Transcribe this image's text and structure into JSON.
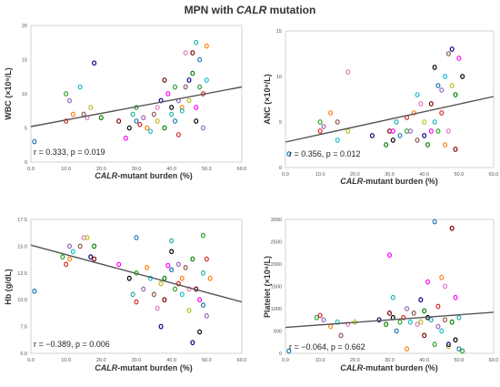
{
  "title": {
    "prefix": "MPN with ",
    "italic": "CALR",
    "suffix": " mutation"
  },
  "colors": {
    "frame": "#c8c8c8",
    "regression": "#555555",
    "points": [
      "#1f77b4",
      "#2ca02c",
      "#d62728",
      "#9467bd",
      "#ff7f0e",
      "#17becf",
      "#8c564b",
      "#e377c2",
      "#bcbd22",
      "#000080",
      "#008000",
      "#800000",
      "#ff00ff",
      "#000000",
      "#20b2aa"
    ]
  },
  "chart_data": [
    {
      "type": "scatter",
      "xlabel_italic": "CALR",
      "xlabel_rest": "-mutant burden (%)",
      "ylabel_html": "WBC (×10⁹/L)",
      "xlim": [
        0,
        60
      ],
      "ylim": [
        0,
        20
      ],
      "xticks": [
        "0.0",
        "10.0",
        "20.0",
        "30.0",
        "40.0",
        "50.0",
        "60.0"
      ],
      "yticks": [
        "0",
        "5",
        "10",
        "15",
        "20"
      ],
      "stat_text": "r  = 0.333, p  = 0.019",
      "regression": {
        "x": [
          0,
          60
        ],
        "y": [
          5.2,
          11.0
        ]
      },
      "points": [
        [
          1,
          3
        ],
        [
          10,
          10
        ],
        [
          10,
          6
        ],
        [
          11,
          9
        ],
        [
          12,
          7
        ],
        [
          14,
          11
        ],
        [
          15,
          7
        ],
        [
          16,
          6.5
        ],
        [
          17,
          8
        ],
        [
          18,
          14.5
        ],
        [
          20,
          6.5
        ],
        [
          25,
          6
        ],
        [
          27,
          3.5
        ],
        [
          28,
          5
        ],
        [
          29,
          7
        ],
        [
          30,
          6
        ],
        [
          30,
          8
        ],
        [
          31,
          5.5
        ],
        [
          32,
          6.5
        ],
        [
          33,
          5
        ],
        [
          34,
          4.5
        ],
        [
          35,
          7
        ],
        [
          36,
          8
        ],
        [
          36,
          6
        ],
        [
          37,
          9
        ],
        [
          38,
          5
        ],
        [
          38,
          12
        ],
        [
          39,
          10
        ],
        [
          40,
          8
        ],
        [
          40,
          7
        ],
        [
          41,
          6
        ],
        [
          41,
          11
        ],
        [
          42,
          4
        ],
        [
          42,
          9
        ],
        [
          43,
          8
        ],
        [
          43,
          7.5
        ],
        [
          44,
          11
        ],
        [
          44,
          16
        ],
        [
          45,
          9
        ],
        [
          45,
          12
        ],
        [
          46,
          13
        ],
        [
          46,
          16
        ],
        [
          47,
          8
        ],
        [
          47,
          6
        ],
        [
          47,
          17.5
        ],
        [
          48,
          15
        ],
        [
          48,
          11
        ],
        [
          49,
          10
        ],
        [
          49,
          5
        ],
        [
          50,
          17
        ],
        [
          50,
          12
        ]
      ]
    },
    {
      "type": "scatter",
      "xlabel_italic": "CALR",
      "xlabel_rest": "-mutant burden (%)",
      "ylabel_html": "ANC (×10⁹/L)",
      "xlim": [
        0,
        60
      ],
      "ylim": [
        0,
        15
      ],
      "xticks": [
        "0.0",
        "10.0",
        "20.0",
        "30.0",
        "40.0",
        "50.0",
        "60.0"
      ],
      "yticks": [
        "0",
        "5",
        "10",
        "15"
      ],
      "stat_text": "r  = 0.356, p  = 0.012",
      "regression": {
        "x": [
          0,
          60
        ],
        "y": [
          2.8,
          7.8
        ]
      },
      "points": [
        [
          1,
          1.5
        ],
        [
          10,
          5
        ],
        [
          10,
          4
        ],
        [
          11,
          4.5
        ],
        [
          13,
          6
        ],
        [
          15,
          3
        ],
        [
          15,
          5
        ],
        [
          18,
          10.5
        ],
        [
          18,
          4
        ],
        [
          25,
          3.5
        ],
        [
          29,
          2.5
        ],
        [
          30,
          4
        ],
        [
          31,
          4
        ],
        [
          31,
          3
        ],
        [
          32,
          5
        ],
        [
          33,
          3.5
        ],
        [
          35,
          4
        ],
        [
          35,
          5.5
        ],
        [
          36,
          4
        ],
        [
          37,
          6
        ],
        [
          38,
          8
        ],
        [
          38,
          3
        ],
        [
          39,
          7
        ],
        [
          40,
          5
        ],
        [
          40,
          3.5
        ],
        [
          41,
          2.5
        ],
        [
          42,
          7
        ],
        [
          42,
          4
        ],
        [
          43,
          11
        ],
        [
          43,
          5
        ],
        [
          44,
          9
        ],
        [
          44,
          4
        ],
        [
          45,
          6
        ],
        [
          45,
          8.5
        ],
        [
          46,
          2.5
        ],
        [
          46,
          10
        ],
        [
          47,
          12.5
        ],
        [
          47,
          4
        ],
        [
          48,
          9
        ],
        [
          48,
          13
        ],
        [
          49,
          8
        ],
        [
          49,
          2
        ],
        [
          50,
          12
        ],
        [
          51,
          10
        ]
      ]
    },
    {
      "type": "scatter",
      "xlabel_italic": "CALR",
      "xlabel_rest": "-mutant burden (%)",
      "ylabel_html": "Hb (g/dL)",
      "xlim": [
        0,
        60
      ],
      "ylim": [
        5,
        17.5
      ],
      "xticks": [
        "0.0",
        "10.0",
        "20.0",
        "30.0",
        "40.0",
        "50.0",
        "60.0"
      ],
      "yticks": [
        "5.0",
        "7.5",
        "10.0",
        "12.5",
        "15.0",
        "17.5"
      ],
      "stat_text": "r  = −0.389, p  = 0.006",
      "regression": {
        "x": [
          0,
          60
        ],
        "y": [
          15.1,
          9.8
        ]
      },
      "points": [
        [
          1,
          10.8
        ],
        [
          9,
          14
        ],
        [
          10,
          13.3
        ],
        [
          11,
          15
        ],
        [
          11,
          13.8
        ],
        [
          12,
          14.5
        ],
        [
          14,
          15
        ],
        [
          15,
          15.8
        ],
        [
          16,
          15.8
        ],
        [
          17,
          14
        ],
        [
          18,
          15
        ],
        [
          18,
          13.8
        ],
        [
          25,
          13.3
        ],
        [
          28,
          12
        ],
        [
          29,
          10.5
        ],
        [
          30,
          15.8
        ],
        [
          30,
          12.5
        ],
        [
          30,
          9.8
        ],
        [
          32,
          11
        ],
        [
          33,
          13
        ],
        [
          34,
          12
        ],
        [
          35,
          10.5
        ],
        [
          36,
          9.2
        ],
        [
          37,
          11.5
        ],
        [
          37,
          7.5
        ],
        [
          38,
          12
        ],
        [
          38,
          10
        ],
        [
          39,
          13.2
        ],
        [
          40,
          14.5
        ],
        [
          40,
          15.5
        ],
        [
          40,
          12.8
        ],
        [
          41,
          11
        ],
        [
          42,
          11.5
        ],
        [
          42,
          13.3
        ],
        [
          43,
          12
        ],
        [
          43,
          10.5
        ],
        [
          44,
          13
        ],
        [
          45,
          11
        ],
        [
          45,
          9
        ],
        [
          46,
          6
        ],
        [
          46,
          13.8
        ],
        [
          47,
          11
        ],
        [
          48,
          10
        ],
        [
          48,
          7
        ],
        [
          49,
          12.5
        ],
        [
          49,
          9.5
        ],
        [
          49,
          16
        ],
        [
          50,
          13.8
        ],
        [
          50,
          8.5
        ],
        [
          51,
          12
        ]
      ]
    },
    {
      "type": "scatter",
      "xlabel_italic": "CALR",
      "xlabel_rest": "-mutant burden (%)",
      "ylabel_html": "Platelet (×10⁹/L)",
      "xlim": [
        0,
        60
      ],
      "ylim": [
        0,
        3000
      ],
      "xticks": [
        "0.0",
        "10.0",
        "20.0",
        "30.0",
        "40.0",
        "50.0",
        "60.0"
      ],
      "yticks": [
        "0",
        "500",
        "1000",
        "1500",
        "2000",
        "2500",
        "3000"
      ],
      "stat_text": "r  = −0.064, p  = 0.662",
      "regression": {
        "x": [
          0,
          60
        ],
        "y": [
          580,
          920
        ]
      },
      "points": [
        [
          1,
          50
        ],
        [
          9,
          800
        ],
        [
          10,
          850
        ],
        [
          11,
          750
        ],
        [
          13,
          600
        ],
        [
          15,
          700
        ],
        [
          16,
          400
        ],
        [
          18,
          650
        ],
        [
          20,
          700
        ],
        [
          27,
          750
        ],
        [
          29,
          650
        ],
        [
          30,
          900
        ],
        [
          30,
          2200
        ],
        [
          31,
          800
        ],
        [
          31,
          1250
        ],
        [
          32,
          500
        ],
        [
          33,
          700
        ],
        [
          34,
          800
        ],
        [
          35,
          1000
        ],
        [
          35,
          100
        ],
        [
          36,
          700
        ],
        [
          37,
          900
        ],
        [
          38,
          650
        ],
        [
          39,
          700
        ],
        [
          39,
          1200
        ],
        [
          40,
          950
        ],
        [
          40,
          400
        ],
        [
          41,
          1600
        ],
        [
          41,
          800
        ],
        [
          42,
          750
        ],
        [
          43,
          2950
        ],
        [
          43,
          200
        ],
        [
          44,
          1050
        ],
        [
          44,
          600
        ],
        [
          45,
          1700
        ],
        [
          45,
          500
        ],
        [
          46,
          750
        ],
        [
          46,
          1500
        ],
        [
          47,
          150
        ],
        [
          47,
          200
        ],
        [
          48,
          700
        ],
        [
          48,
          2800
        ],
        [
          49,
          1250
        ],
        [
          49,
          300
        ],
        [
          50,
          800
        ],
        [
          50,
          100
        ],
        [
          51,
          50
        ]
      ]
    }
  ]
}
